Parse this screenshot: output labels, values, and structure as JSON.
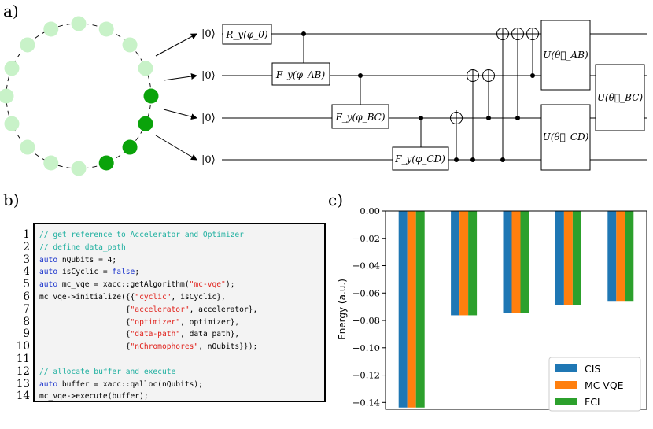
{
  "panel_labels": {
    "a": "a)",
    "b": "b)",
    "c": "c)"
  },
  "circuit": {
    "qubit_labels": [
      "|0⟩",
      "|0⟩",
      "|0⟩",
      "|0⟩"
    ],
    "gates": {
      "ry": "R_y(φ_0)",
      "fy_ab": "F_y(φ_AB)",
      "fy_bc": "F_y(φ_BC)",
      "fy_cd": "F_y(φ_CD)",
      "u_ab": "U(θ⃗_AB)",
      "u_cd": "U(θ⃗_CD)",
      "u_bc": "U(θ⃗_BC)"
    },
    "colors": {
      "active": "#0aa30a",
      "inactive": "#c8f2c8"
    }
  },
  "code": {
    "line_numbers": [
      "1",
      "2",
      "3",
      "4",
      "5",
      "6",
      "7",
      "8",
      "9",
      "10",
      "11",
      "12",
      "13",
      "14"
    ],
    "lines": [
      [
        {
          "t": "comment",
          "s": "// get reference to Accelerator and Optimizer"
        }
      ],
      [
        {
          "t": "comment",
          "s": "// define data_path"
        }
      ],
      [
        {
          "t": "keyword",
          "s": "auto"
        },
        {
          "t": "plain",
          "s": " nQubits = 4;"
        }
      ],
      [
        {
          "t": "keyword",
          "s": "auto"
        },
        {
          "t": "plain",
          "s": " isCyclic = "
        },
        {
          "t": "keyword",
          "s": "false"
        },
        {
          "t": "plain",
          "s": ";"
        }
      ],
      [
        {
          "t": "keyword",
          "s": "auto"
        },
        {
          "t": "plain",
          "s": " mc_vqe = xacc::getAlgorithm("
        },
        {
          "t": "string",
          "s": "\"mc-vqe\""
        },
        {
          "t": "plain",
          "s": ");"
        }
      ],
      [
        {
          "t": "plain",
          "s": "mc_vqe->initialize({{"
        },
        {
          "t": "string",
          "s": "\"cyclic\""
        },
        {
          "t": "plain",
          "s": ", isCyclic},"
        }
      ],
      [
        {
          "t": "plain",
          "s": "                   {"
        },
        {
          "t": "string",
          "s": "\"accelerator\""
        },
        {
          "t": "plain",
          "s": ", accelerator},"
        }
      ],
      [
        {
          "t": "plain",
          "s": "                   {"
        },
        {
          "t": "string",
          "s": "\"optimizer\""
        },
        {
          "t": "plain",
          "s": ", optimizer},"
        }
      ],
      [
        {
          "t": "plain",
          "s": "                   {"
        },
        {
          "t": "string",
          "s": "\"data-path\""
        },
        {
          "t": "plain",
          "s": ", data_path},"
        }
      ],
      [
        {
          "t": "plain",
          "s": "                   {"
        },
        {
          "t": "string",
          "s": "\"nChromophores\""
        },
        {
          "t": "plain",
          "s": ", nQubits}});"
        }
      ],
      [],
      [
        {
          "t": "comment",
          "s": "// allocate buffer and execute"
        }
      ],
      [
        {
          "t": "keyword",
          "s": "auto"
        },
        {
          "t": "plain",
          "s": " buffer = xacc::qalloc(nQubits);"
        }
      ],
      [
        {
          "t": "plain",
          "s": "mc_vqe->execute(buffer);"
        }
      ]
    ],
    "colors": {
      "comment": "#20b0a0",
      "keyword": "#1a33cc",
      "string": "#e0211b",
      "background": "#f3f3f3"
    }
  },
  "chart_data": {
    "type": "bar",
    "title": "",
    "xlabel": "",
    "ylabel": "Energy (a.u.)",
    "ylim": [
      -0.145,
      0.0
    ],
    "yticks": [
      "0.00",
      "−0.02",
      "−0.04",
      "−0.06",
      "−0.08",
      "−0.10",
      "−0.12",
      "−0.14"
    ],
    "categories": [
      "",
      "",
      "",
      "",
      ""
    ],
    "series": [
      {
        "name": "CIS",
        "color": "#1f77b4",
        "values": [
          -0.1437,
          -0.0762,
          -0.0747,
          -0.0688,
          -0.0663
        ]
      },
      {
        "name": "MC-VQE",
        "color": "#ff7f0e",
        "values": [
          -0.1437,
          -0.0762,
          -0.0747,
          -0.0688,
          -0.0663
        ]
      },
      {
        "name": "FCI",
        "color": "#2ca02c",
        "values": [
          -0.1437,
          -0.0762,
          -0.0747,
          -0.0688,
          -0.0663
        ]
      }
    ],
    "grid": false,
    "legend_position": "bottom-right"
  }
}
